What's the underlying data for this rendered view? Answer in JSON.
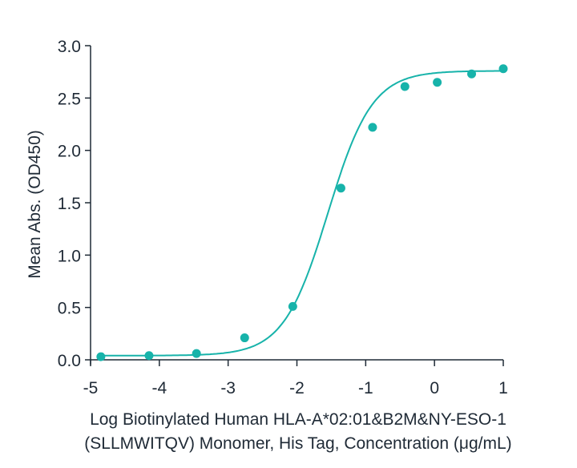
{
  "chart_data": {
    "type": "scatter",
    "title": "",
    "xlabel_lines": [
      "Log Biotinylated Human HLA-A*02:01&B2M&NY-ESO-1",
      "(SLLMWITQV) Monomer, His Tag, Concentration (μg/mL)"
    ],
    "ylabel": "Mean Abs. (OD450)",
    "xlim": [
      -5,
      1
    ],
    "ylim": [
      0,
      3.0
    ],
    "xticks": [
      "-5",
      "-4",
      "-3",
      "-2",
      "-1",
      "0",
      "1"
    ],
    "yticks": [
      "0.0",
      "0.5",
      "1.0",
      "1.5",
      "2.0",
      "2.5",
      "3.0"
    ],
    "grid": false,
    "color": "#17b3aa",
    "points": [
      {
        "x": -4.85,
        "y": 0.03
      },
      {
        "x": -4.15,
        "y": 0.04
      },
      {
        "x": -3.46,
        "y": 0.06
      },
      {
        "x": -2.76,
        "y": 0.21
      },
      {
        "x": -2.06,
        "y": 0.51
      },
      {
        "x": -1.36,
        "y": 1.64
      },
      {
        "x": -0.9,
        "y": 2.22
      },
      {
        "x": -0.43,
        "y": 2.61
      },
      {
        "x": 0.04,
        "y": 2.65
      },
      {
        "x": 0.54,
        "y": 2.73
      },
      {
        "x": 1.0,
        "y": 2.78
      }
    ],
    "fit": {
      "model": "4PL",
      "bottom": 0.04,
      "top": 2.76,
      "log_ec50": -1.55,
      "hill": 1.35
    }
  }
}
